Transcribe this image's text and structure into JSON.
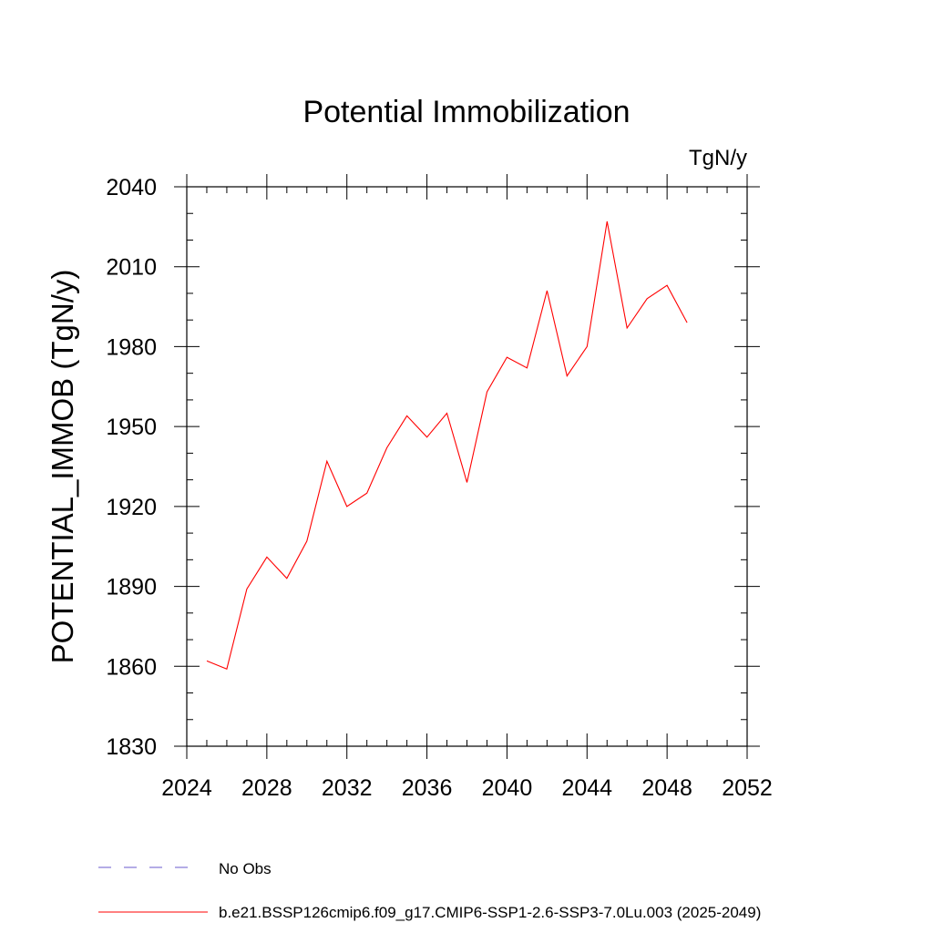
{
  "chart_data": {
    "type": "line",
    "title": "Potential Immobilization",
    "units_label": "TgN/y",
    "ylabel": "POTENTIAL_IMMOB  (TgN/y)",
    "xlabel": "",
    "xlim": [
      2024,
      2052
    ],
    "ylim": [
      1830,
      2040
    ],
    "xticks": [
      2024,
      2028,
      2032,
      2036,
      2040,
      2044,
      2048,
      2052
    ],
    "yticks": [
      1830,
      1860,
      1890,
      1920,
      1950,
      1980,
      2010,
      2040
    ],
    "x_minor_step": 1,
    "y_minor_step": 10,
    "grid": false,
    "legend_position": "bottom-left",
    "legend": [
      {
        "label": "No Obs",
        "style": "dashed",
        "color": "#6a5acd"
      },
      {
        "label": "b.e21.BSSP126cmip6.f09_g17.CMIP6-SSP1-2.6-SSP3-7.0Lu.003 (2025-2049)",
        "style": "solid",
        "color": "#ff0000"
      }
    ],
    "series": [
      {
        "name": "b.e21.BSSP126cmip6.f09_g17.CMIP6-SSP1-2.6-SSP3-7.0Lu.003 (2025-2049)",
        "color": "#ff0000",
        "x": [
          2025,
          2026,
          2027,
          2028,
          2029,
          2030,
          2031,
          2032,
          2033,
          2034,
          2035,
          2036,
          2037,
          2038,
          2039,
          2040,
          2041,
          2042,
          2043,
          2044,
          2045,
          2046,
          2047,
          2048,
          2049
        ],
        "y": [
          1862,
          1859,
          1889,
          1901,
          1893,
          1907,
          1937,
          1920,
          1925,
          1942,
          1954,
          1946,
          1955,
          1929,
          1963,
          1976,
          1972,
          2001,
          1969,
          1980,
          2027,
          1987,
          1998,
          2003,
          1989
        ]
      }
    ]
  }
}
